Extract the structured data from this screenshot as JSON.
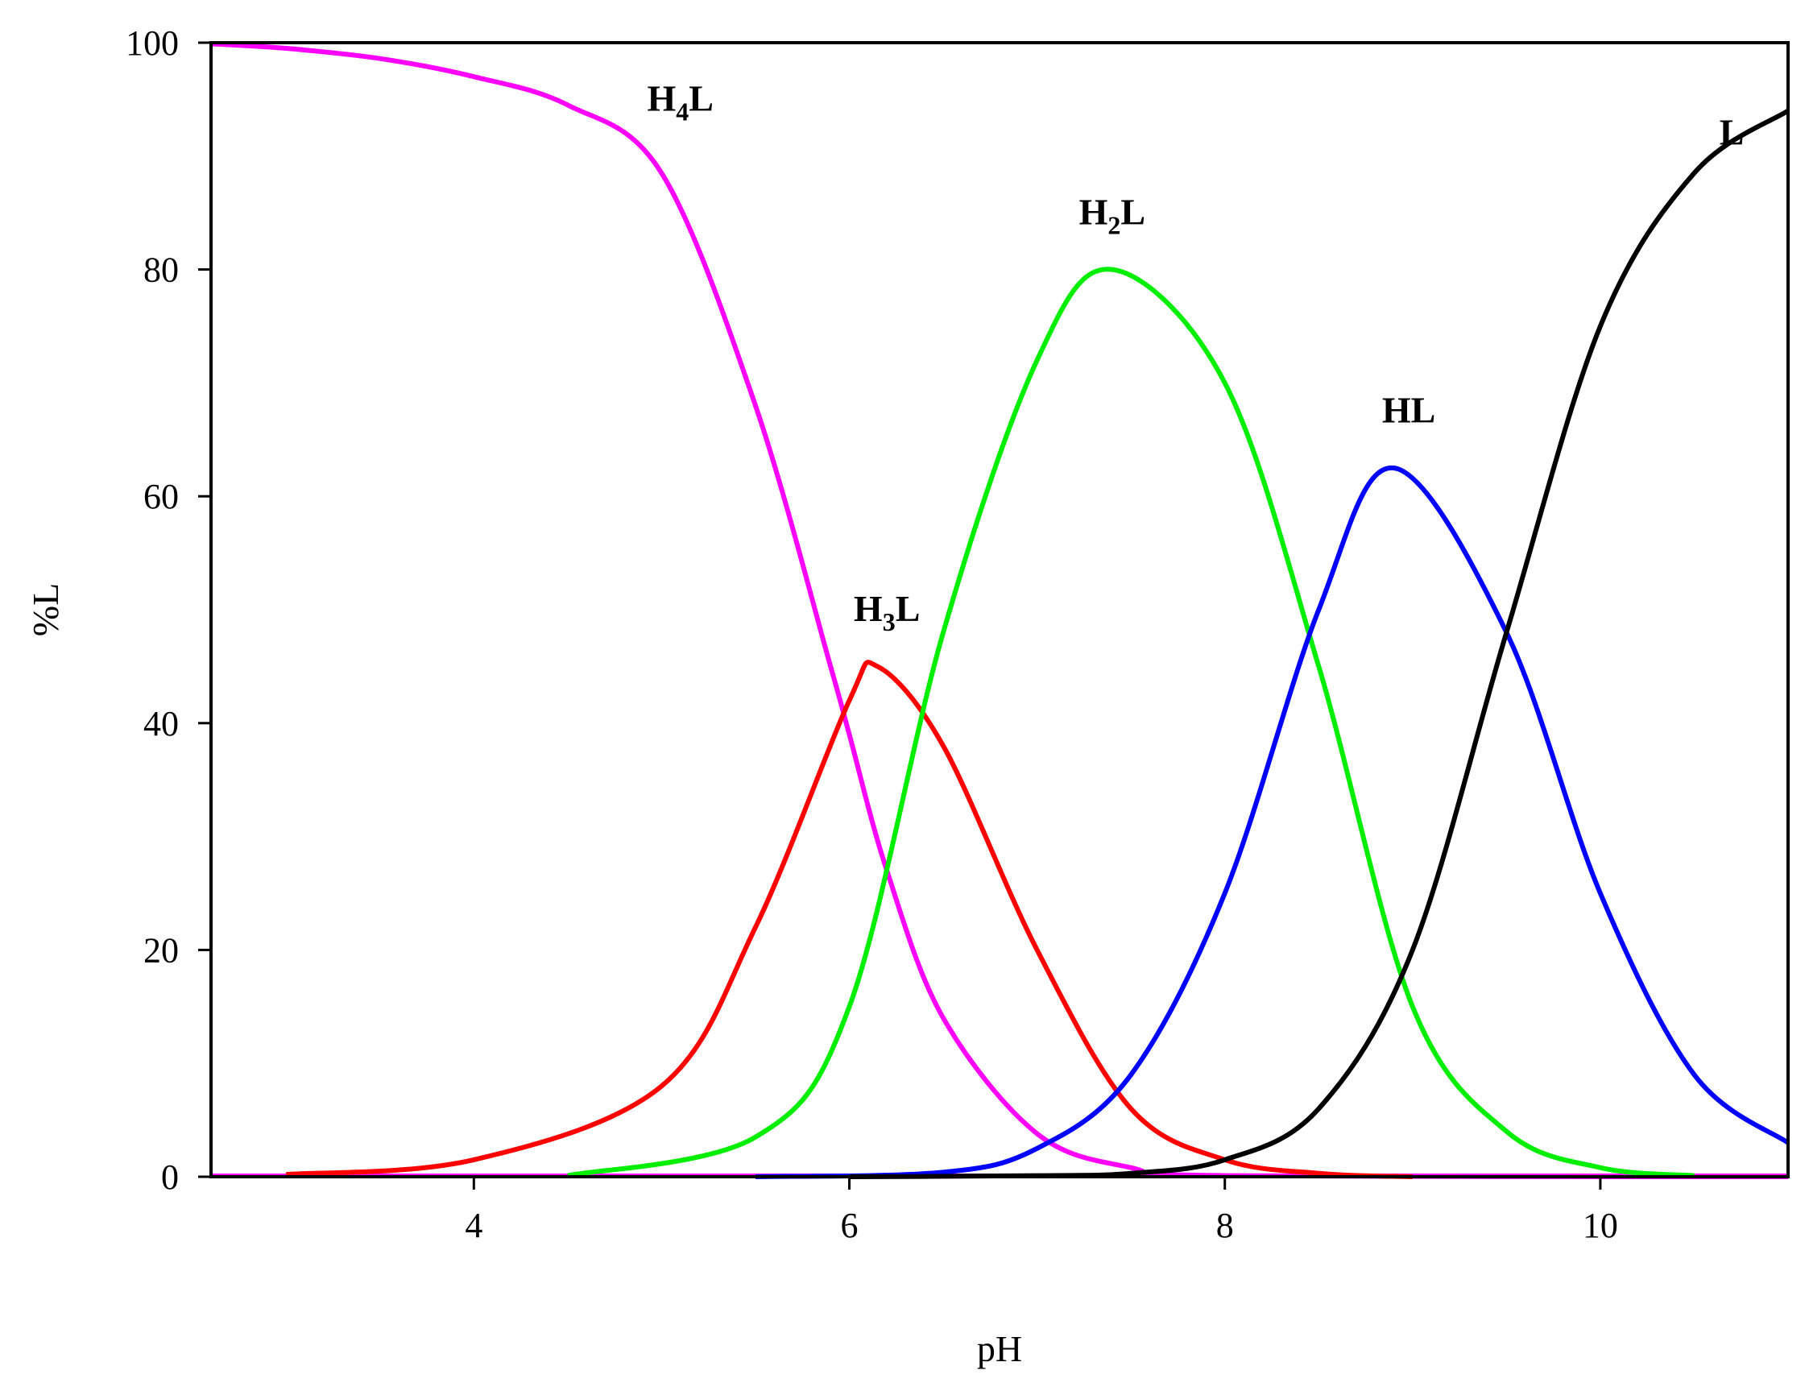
{
  "chart_data": {
    "type": "line",
    "xlabel": "pH",
    "ylabel": "%L",
    "xlim": [
      2.6,
      11.0
    ],
    "ylim": [
      0,
      100
    ],
    "xticks": [
      4,
      6,
      8,
      10
    ],
    "yticks": [
      0,
      20,
      40,
      60,
      80,
      100
    ],
    "grid": false,
    "legend": "none (curves labeled directly)",
    "species_pKa": [
      5.9,
      6.35,
      8.4,
      9.45
    ],
    "series": [
      {
        "name": "H4L",
        "label_main": "H",
        "label_sub": "4",
        "label_tail": "L",
        "color": "#ff00ff",
        "x": [
          2.6,
          3.0,
          3.5,
          4.0,
          4.5,
          5.0,
          5.5,
          5.9,
          6.0,
          6.2,
          6.5,
          7.0,
          7.5,
          8.0,
          11.0
        ],
        "y": [
          99.9,
          99.5,
          98.6,
          97.0,
          94.5,
          88.5,
          68.0,
          45.0,
          39.0,
          27.0,
          14.0,
          3.8,
          0.8,
          0.1,
          0.0
        ]
      },
      {
        "name": "H3L",
        "label_main": "H",
        "label_sub": "3",
        "label_tail": "L",
        "color": "#ff0000",
        "x": [
          3.0,
          4.0,
          5.0,
          5.5,
          6.0,
          6.15,
          6.5,
          7.0,
          7.5,
          8.0,
          8.5,
          9.0
        ],
        "y": [
          0.2,
          1.5,
          8.0,
          22.0,
          42.0,
          45.0,
          38.0,
          20.0,
          6.0,
          1.5,
          0.3,
          0.0
        ]
      },
      {
        "name": "H2L",
        "label_main": "H",
        "label_sub": "2",
        "label_tail": "L",
        "color": "#00ee00",
        "x": [
          4.5,
          5.5,
          6.0,
          6.5,
          7.0,
          7.4,
          8.0,
          8.5,
          9.0,
          9.5,
          10.0,
          10.5
        ],
        "y": [
          0.1,
          3.5,
          15.0,
          48.0,
          72.0,
          80.0,
          70.0,
          45.0,
          15.0,
          4.0,
          0.8,
          0.1
        ]
      },
      {
        "name": "HL",
        "label_main": "HL",
        "label_sub": "",
        "label_tail": "",
        "color": "#0000ff",
        "x": [
          5.5,
          6.5,
          7.0,
          7.5,
          8.0,
          8.5,
          8.9,
          9.5,
          10.0,
          10.5,
          11.0
        ],
        "y": [
          0.0,
          0.4,
          2.5,
          9.0,
          25.0,
          50.0,
          62.5,
          48.0,
          25.0,
          9.0,
          3.0
        ]
      },
      {
        "name": "L",
        "label_main": "L",
        "label_sub": "",
        "label_tail": "",
        "color": "#000000",
        "x": [
          6.0,
          7.0,
          7.5,
          8.0,
          8.5,
          9.0,
          9.5,
          10.0,
          10.5,
          11.0
        ],
        "y": [
          0.0,
          0.1,
          0.3,
          1.5,
          6.0,
          20.0,
          48.0,
          75.0,
          88.5,
          94.0
        ]
      }
    ]
  }
}
